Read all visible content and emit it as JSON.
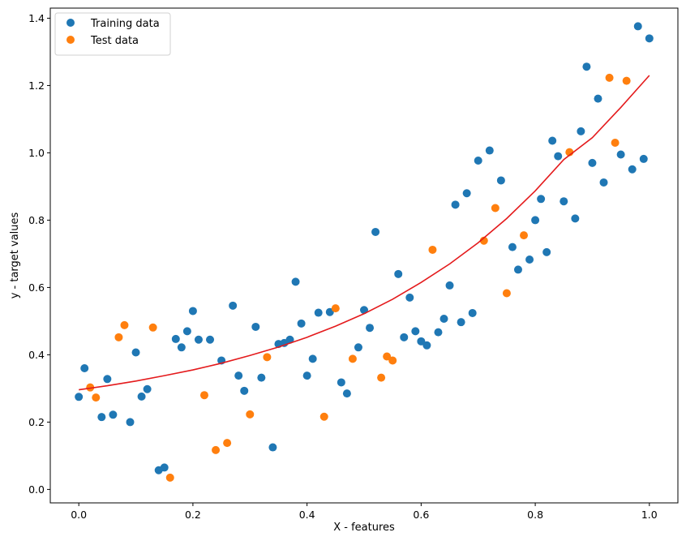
{
  "chart_data": {
    "type": "scatter",
    "xlabel": "X - features",
    "ylabel": "y - target values",
    "xlim": [
      -0.05,
      1.05
    ],
    "ylim": [
      -0.04,
      1.43
    ],
    "xticks": [
      0.0,
      0.2,
      0.4,
      0.6,
      0.8,
      1.0
    ],
    "xtick_labels": [
      "0.0",
      "0.2",
      "0.4",
      "0.6",
      "0.8",
      "1.0"
    ],
    "yticks": [
      0.0,
      0.2,
      0.4,
      0.6,
      0.8,
      1.0,
      1.2,
      1.4
    ],
    "ytick_labels": [
      "0.0",
      "0.2",
      "0.4",
      "0.6",
      "0.8",
      "1.0",
      "1.2",
      "1.4"
    ],
    "grid": false,
    "legend_position": "top-left",
    "series": [
      {
        "name": "Training data",
        "color": "#1f77b4",
        "kind": "scatter",
        "points": [
          [
            0.0,
            0.275
          ],
          [
            0.01,
            0.36
          ],
          [
            0.04,
            0.215
          ],
          [
            0.05,
            0.328
          ],
          [
            0.06,
            0.222
          ],
          [
            0.09,
            0.2
          ],
          [
            0.1,
            0.407
          ],
          [
            0.11,
            0.276
          ],
          [
            0.12,
            0.298
          ],
          [
            0.14,
            0.057
          ],
          [
            0.15,
            0.065
          ],
          [
            0.17,
            0.447
          ],
          [
            0.18,
            0.422
          ],
          [
            0.19,
            0.47
          ],
          [
            0.2,
            0.53
          ],
          [
            0.21,
            0.445
          ],
          [
            0.23,
            0.445
          ],
          [
            0.25,
            0.383
          ],
          [
            0.27,
            0.546
          ],
          [
            0.28,
            0.338
          ],
          [
            0.29,
            0.293
          ],
          [
            0.31,
            0.483
          ],
          [
            0.32,
            0.332
          ],
          [
            0.34,
            0.125
          ],
          [
            0.35,
            0.432
          ],
          [
            0.36,
            0.435
          ],
          [
            0.37,
            0.445
          ],
          [
            0.38,
            0.617
          ],
          [
            0.39,
            0.493
          ],
          [
            0.4,
            0.338
          ],
          [
            0.41,
            0.388
          ],
          [
            0.42,
            0.525
          ],
          [
            0.44,
            0.527
          ],
          [
            0.46,
            0.318
          ],
          [
            0.47,
            0.285
          ],
          [
            0.49,
            0.422
          ],
          [
            0.5,
            0.533
          ],
          [
            0.51,
            0.48
          ],
          [
            0.52,
            0.765
          ],
          [
            0.56,
            0.64
          ],
          [
            0.57,
            0.452
          ],
          [
            0.58,
            0.57
          ],
          [
            0.59,
            0.47
          ],
          [
            0.6,
            0.44
          ],
          [
            0.61,
            0.428
          ],
          [
            0.63,
            0.467
          ],
          [
            0.64,
            0.507
          ],
          [
            0.65,
            0.606
          ],
          [
            0.66,
            0.846
          ],
          [
            0.67,
            0.497
          ],
          [
            0.68,
            0.88
          ],
          [
            0.69,
            0.524
          ],
          [
            0.7,
            0.977
          ],
          [
            0.72,
            1.007
          ],
          [
            0.74,
            0.918
          ],
          [
            0.76,
            0.72
          ],
          [
            0.77,
            0.653
          ],
          [
            0.79,
            0.683
          ],
          [
            0.8,
            0.8
          ],
          [
            0.81,
            0.863
          ],
          [
            0.82,
            0.705
          ],
          [
            0.83,
            1.036
          ],
          [
            0.84,
            0.99
          ],
          [
            0.85,
            0.856
          ],
          [
            0.87,
            0.805
          ],
          [
            0.88,
            1.064
          ],
          [
            0.89,
            1.256
          ],
          [
            0.9,
            0.97
          ],
          [
            0.91,
            1.161
          ],
          [
            0.92,
            0.912
          ],
          [
            0.95,
            0.995
          ],
          [
            0.97,
            0.951
          ],
          [
            0.98,
            1.376
          ],
          [
            0.99,
            0.982
          ],
          [
            1.0,
            1.34
          ]
        ]
      },
      {
        "name": "Test data",
        "color": "#ff7f0e",
        "kind": "scatter",
        "points": [
          [
            0.02,
            0.303
          ],
          [
            0.03,
            0.273
          ],
          [
            0.07,
            0.452
          ],
          [
            0.08,
            0.488
          ],
          [
            0.13,
            0.481
          ],
          [
            0.16,
            0.035
          ],
          [
            0.22,
            0.28
          ],
          [
            0.24,
            0.117
          ],
          [
            0.26,
            0.138
          ],
          [
            0.3,
            0.223
          ],
          [
            0.33,
            0.393
          ],
          [
            0.43,
            0.216
          ],
          [
            0.45,
            0.538
          ],
          [
            0.48,
            0.388
          ],
          [
            0.53,
            0.332
          ],
          [
            0.54,
            0.395
          ],
          [
            0.55,
            0.383
          ],
          [
            0.62,
            0.712
          ],
          [
            0.71,
            0.739
          ],
          [
            0.73,
            0.836
          ],
          [
            0.75,
            0.583
          ],
          [
            0.78,
            0.755
          ],
          [
            0.86,
            1.002
          ],
          [
            0.93,
            1.223
          ],
          [
            0.94,
            1.03
          ],
          [
            0.96,
            1.214
          ]
        ]
      },
      {
        "name": "",
        "color": "#e41a1c",
        "kind": "line",
        "points": [
          [
            0.0,
            0.296
          ],
          [
            0.05,
            0.308
          ],
          [
            0.1,
            0.322
          ],
          [
            0.15,
            0.338
          ],
          [
            0.2,
            0.355
          ],
          [
            0.25,
            0.375
          ],
          [
            0.3,
            0.398
          ],
          [
            0.35,
            0.423
          ],
          [
            0.4,
            0.452
          ],
          [
            0.45,
            0.485
          ],
          [
            0.5,
            0.522
          ],
          [
            0.55,
            0.565
          ],
          [
            0.6,
            0.615
          ],
          [
            0.65,
            0.67
          ],
          [
            0.7,
            0.733
          ],
          [
            0.75,
            0.805
          ],
          [
            0.8,
            0.887
          ],
          [
            0.85,
            0.98
          ],
          [
            0.9,
            1.045
          ],
          [
            0.95,
            1.135
          ],
          [
            1.0,
            1.23
          ]
        ]
      }
    ]
  }
}
